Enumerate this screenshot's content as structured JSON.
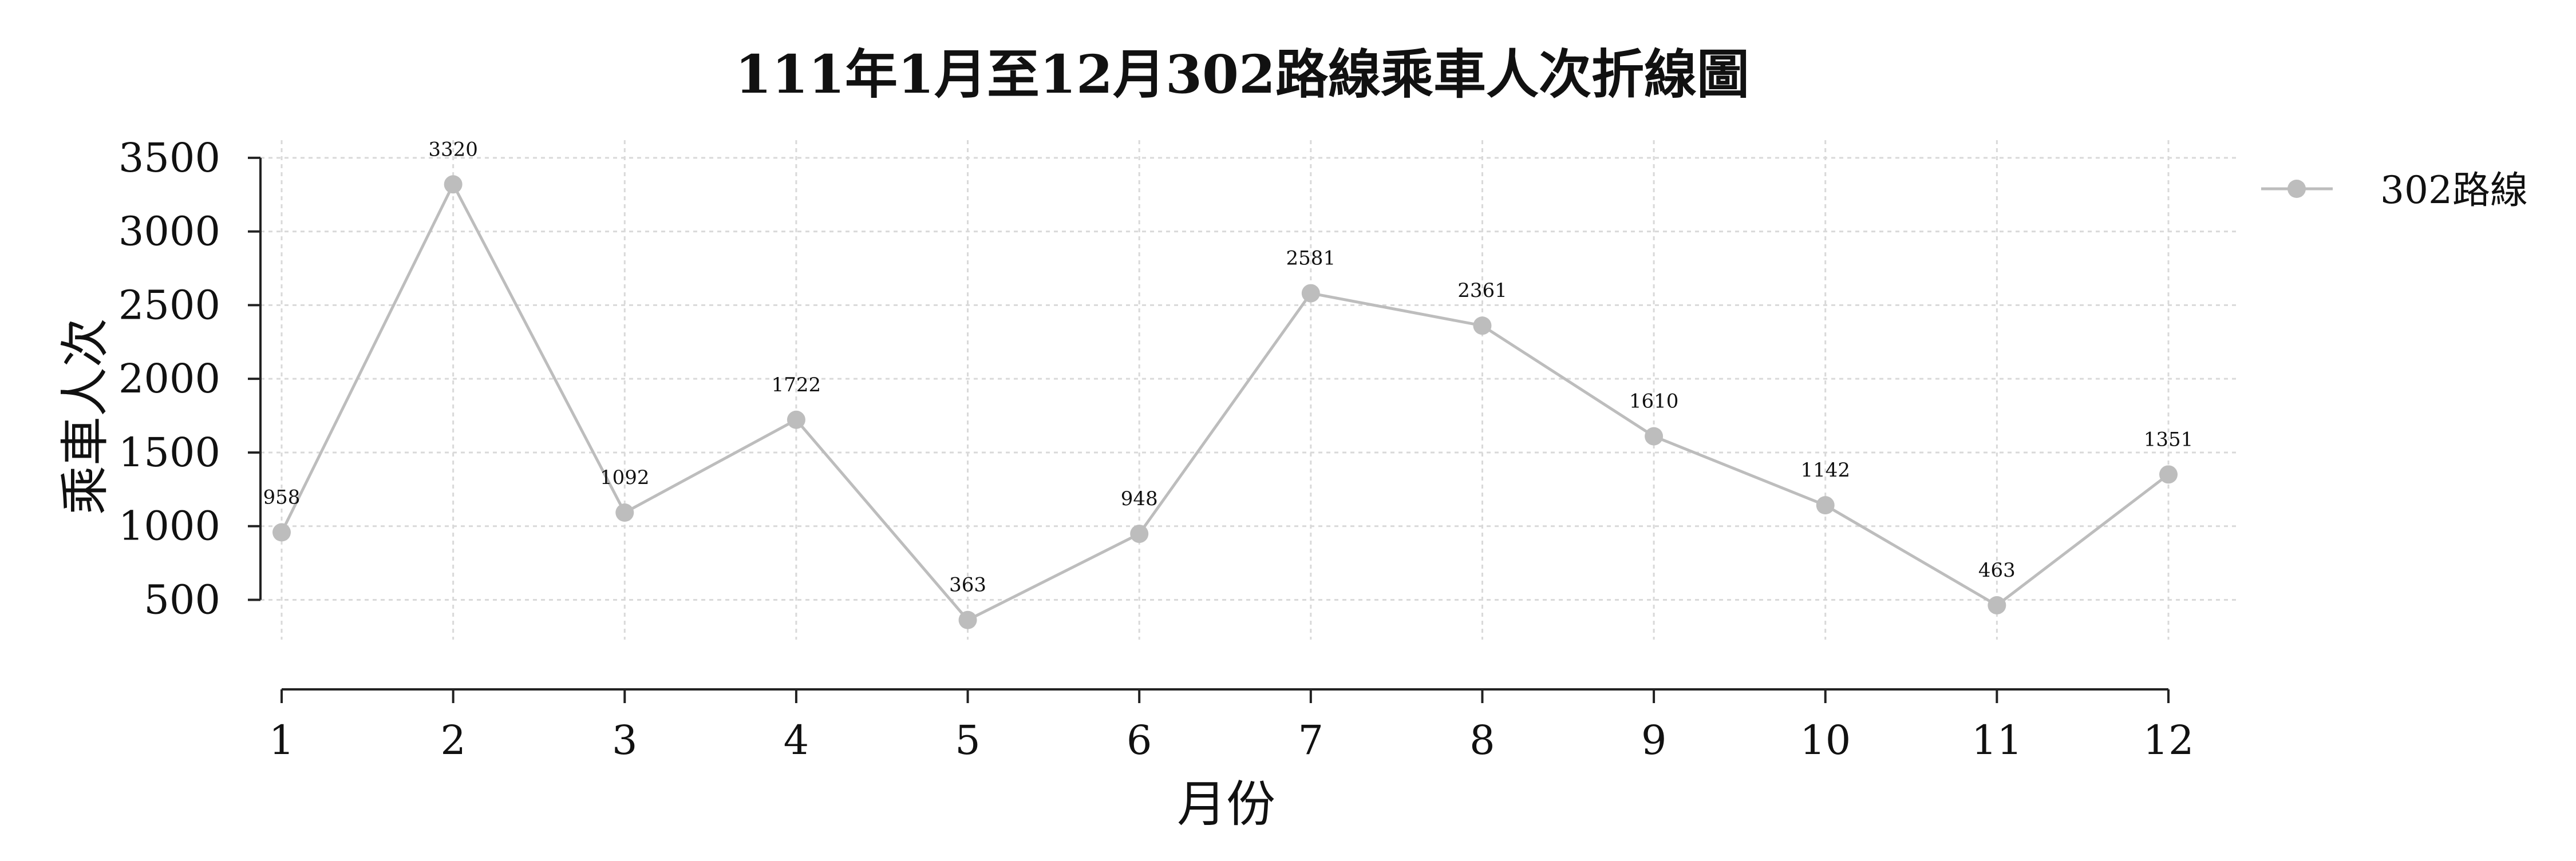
{
  "chart_data": {
    "type": "line",
    "title": "111年1月至12月302路線乘車人次折線圖",
    "xlabel": "月份",
    "ylabel": "乘車人次",
    "categories": [
      "1",
      "2",
      "3",
      "4",
      "5",
      "6",
      "7",
      "8",
      "9",
      "10",
      "11",
      "12"
    ],
    "series": [
      {
        "name": "302路線",
        "values": [
          958,
          3320,
          1092,
          1722,
          363,
          948,
          2581,
          2361,
          1610,
          1142,
          463,
          1351
        ]
      }
    ],
    "yticks": [
      "500",
      "1000",
      "1500",
      "2000",
      "2500",
      "3000",
      "3500"
    ],
    "ylim": [
      230,
      3620
    ],
    "grid": true,
    "legend_position": "top-right outside",
    "colors": {
      "series": "#bdbdbd",
      "grid": "#d9d9d9",
      "axis": "#222222"
    }
  }
}
